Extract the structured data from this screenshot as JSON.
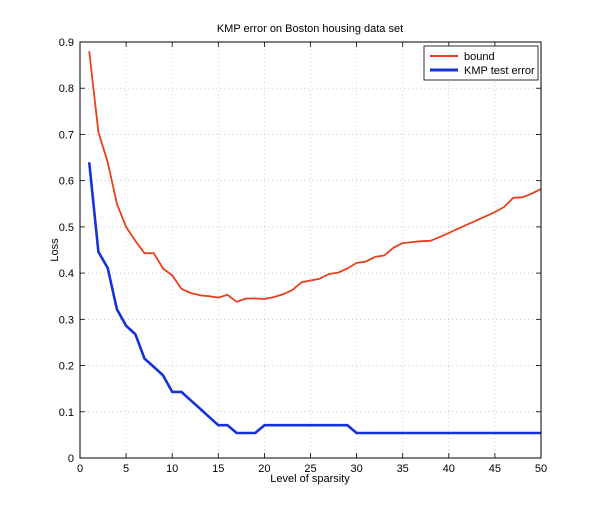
{
  "chart_data": {
    "type": "line",
    "title": "KMP error on Boston housing data set",
    "xlabel": "Level of sparsity",
    "ylabel": "Loss",
    "xlim": [
      0,
      50
    ],
    "ylim": [
      0,
      0.9
    ],
    "xticks": [
      "0",
      "5",
      "10",
      "15",
      "20",
      "25",
      "30",
      "35",
      "40",
      "45",
      "50"
    ],
    "yticks": [
      "0",
      "0.1",
      "0.2",
      "0.3",
      "0.4",
      "0.5",
      "0.6",
      "0.7",
      "0.8",
      "0.9"
    ],
    "grid": true,
    "legend_position": "top-right",
    "series": [
      {
        "name": "bound",
        "color": "#e8401c",
        "x": [
          1,
          2,
          3,
          4,
          5,
          6,
          7,
          8,
          9,
          10,
          11,
          12,
          13,
          14,
          15,
          16,
          17,
          18,
          19,
          20,
          21,
          22,
          23,
          24,
          25,
          26,
          27,
          28,
          29,
          30,
          31,
          32,
          33,
          34,
          35,
          36,
          37,
          38,
          39,
          40,
          41,
          42,
          43,
          44,
          45,
          46,
          47,
          48,
          49,
          50
        ],
        "values": [
          0.88,
          0.705,
          0.64,
          0.55,
          0.5,
          0.47,
          0.443,
          0.443,
          0.41,
          0.395,
          0.366,
          0.357,
          0.352,
          0.35,
          0.347,
          0.353,
          0.338,
          0.345,
          0.345,
          0.344,
          0.348,
          0.354,
          0.363,
          0.38,
          0.384,
          0.388,
          0.398,
          0.401,
          0.41,
          0.422,
          0.425,
          0.435,
          0.438,
          0.455,
          0.465,
          0.467,
          0.469,
          0.47,
          0.478,
          0.487,
          0.496,
          0.505,
          0.514,
          0.523,
          0.532,
          0.543,
          0.563,
          0.564,
          0.572,
          0.582
        ]
      },
      {
        "name": "KMP test error",
        "color": "#1432d6",
        "x": [
          1,
          2,
          3,
          4,
          5,
          6,
          7,
          8,
          9,
          10,
          11,
          12,
          13,
          14,
          15,
          16,
          17,
          18,
          19,
          20,
          21,
          22,
          23,
          24,
          25,
          26,
          27,
          28,
          29,
          30,
          31,
          32,
          33,
          34,
          35,
          36,
          37,
          38,
          39,
          40,
          41,
          42,
          43,
          44,
          45,
          46,
          47,
          48,
          49,
          50
        ],
        "values": [
          0.64,
          0.446,
          0.411,
          0.322,
          0.286,
          0.268,
          0.215,
          0.197,
          0.179,
          0.143,
          0.143,
          0.125,
          0.107,
          0.089,
          0.071,
          0.071,
          0.054,
          0.054,
          0.054,
          0.071,
          0.071,
          0.071,
          0.071,
          0.071,
          0.071,
          0.071,
          0.071,
          0.071,
          0.071,
          0.054,
          0.054,
          0.054,
          0.054,
          0.054,
          0.054,
          0.054,
          0.054,
          0.054,
          0.054,
          0.054,
          0.054,
          0.054,
          0.054,
          0.054,
          0.054,
          0.054,
          0.054,
          0.054,
          0.054,
          0.054
        ]
      }
    ]
  }
}
